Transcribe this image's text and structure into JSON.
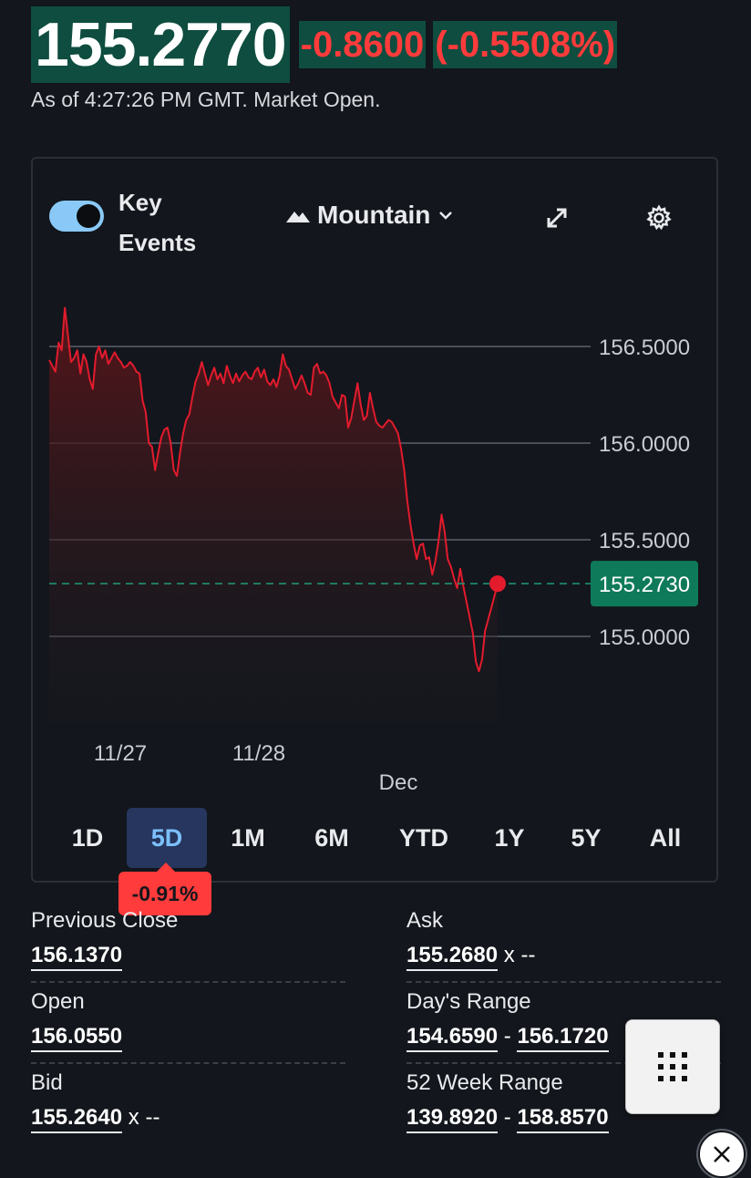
{
  "quote": {
    "price": "155.2770",
    "change": "-0.8600",
    "change_pct": "(-0.5508%)",
    "as_of": "As of 4:27:26 PM GMT. Market Open."
  },
  "chart_controls": {
    "key_events_label": "Key Events",
    "key_events_on": true,
    "chart_type_label": "Mountain",
    "icons": [
      "chart-type-mountain-icon",
      "chevron-down-icon",
      "expand-icon",
      "gear-icon"
    ]
  },
  "chart_data": {
    "type": "area",
    "y_ticks": [
      "156.5000",
      "156.0000",
      "155.5000",
      "155.0000"
    ],
    "y_tick_values": [
      156.5,
      156.0,
      155.5,
      155.0
    ],
    "x_ticks": [
      "11/27",
      "11/28",
      "Dec"
    ],
    "current_label": "155.2730",
    "current_value": 155.273,
    "series": [
      {
        "color": "#e31b2d",
        "values": [
          156.43,
          156.4,
          156.37,
          156.52,
          156.48,
          156.7,
          156.56,
          156.42,
          156.44,
          156.48,
          156.36,
          156.46,
          156.42,
          156.33,
          156.28,
          156.46,
          156.5,
          156.44,
          156.48,
          156.41,
          156.44,
          156.47,
          156.44,
          156.42,
          156.39,
          156.4,
          156.42,
          156.4,
          156.37,
          156.36,
          156.22,
          156.16,
          156.0,
          155.98,
          155.86,
          155.95,
          156.03,
          156.07,
          156.08,
          156.0,
          155.86,
          155.83,
          155.95,
          156.05,
          156.12,
          156.15,
          156.24,
          156.32,
          156.36,
          156.42,
          156.36,
          156.3,
          156.35,
          156.39,
          156.33,
          156.36,
          156.31,
          156.4,
          156.35,
          156.31,
          156.36,
          156.32,
          156.35,
          156.37,
          156.34,
          156.33,
          156.37,
          156.39,
          156.34,
          156.38,
          156.32,
          156.3,
          156.33,
          156.29,
          156.35,
          156.46,
          156.4,
          156.38,
          156.33,
          156.28,
          156.31,
          156.35,
          156.31,
          156.26,
          156.25,
          156.39,
          156.41,
          156.36,
          156.37,
          156.35,
          156.31,
          156.24,
          156.21,
          156.18,
          156.25,
          156.24,
          156.08,
          156.13,
          156.22,
          156.31,
          156.2,
          156.12,
          156.14,
          156.26,
          156.18,
          156.11,
          156.09,
          156.08,
          156.1,
          156.12,
          156.11,
          156.08,
          156.05,
          155.97,
          155.86,
          155.7,
          155.58,
          155.48,
          155.4,
          155.47,
          155.48,
          155.4,
          155.41,
          155.32,
          155.39,
          155.49,
          155.63,
          155.54,
          155.4,
          155.36,
          155.3,
          155.25,
          155.35,
          155.26,
          155.18,
          155.1,
          155.02,
          154.87,
          154.82,
          154.88,
          155.03,
          155.09,
          155.15,
          155.21,
          155.273
        ]
      }
    ],
    "y_range": [
      154.6,
      156.75
    ]
  },
  "ranges": {
    "items": [
      "1D",
      "5D",
      "1M",
      "6M",
      "YTD",
      "1Y",
      "5Y",
      "All"
    ],
    "active": "5D",
    "active_change": "-0.91%"
  },
  "stats": {
    "previous_close": {
      "label": "Previous Close",
      "value": "156.1370"
    },
    "ask": {
      "label": "Ask",
      "value": "155.2680",
      "suffix": "x --"
    },
    "open": {
      "label": "Open",
      "value": "156.0550"
    },
    "days_range": {
      "label": "Day's Range",
      "low": "154.6590",
      "high": "156.1720"
    },
    "bid": {
      "label": "Bid",
      "value": "155.2640",
      "suffix": "x --"
    },
    "week52_range": {
      "label": "52 Week Range",
      "low": "139.8920",
      "high": "158.8570"
    }
  },
  "colors": {
    "background": "#13161c",
    "price_bg": "#0e4d3f",
    "negative": "#ff3b3b",
    "line": "#e31b2d",
    "current_label_bg": "#0f7a5a",
    "active_tab_bg": "#26365e",
    "active_tab_text": "#7cc1ff"
  },
  "floating": {
    "keypad_icon": "keypad-grid-icon",
    "close_icon": "close-icon"
  }
}
